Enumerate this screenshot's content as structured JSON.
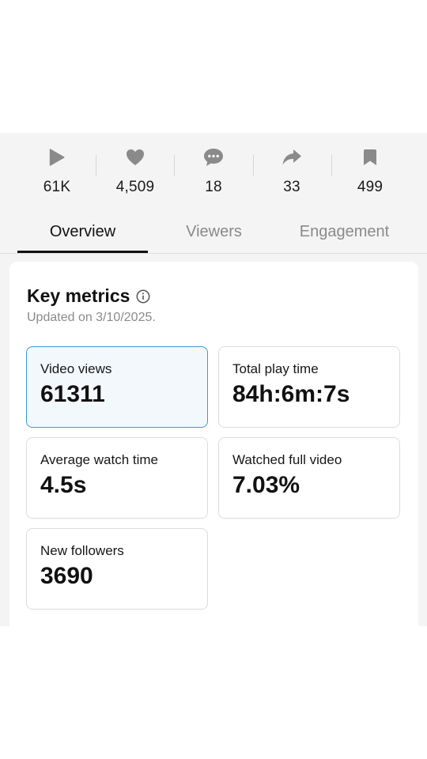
{
  "stats": [
    {
      "icon": "play-icon",
      "value": "61K"
    },
    {
      "icon": "heart-icon",
      "value": "4,509"
    },
    {
      "icon": "comment-icon",
      "value": "18"
    },
    {
      "icon": "share-icon",
      "value": "33"
    },
    {
      "icon": "bookmark-icon",
      "value": "499"
    }
  ],
  "tabs": [
    {
      "label": "Overview",
      "active": true
    },
    {
      "label": "Viewers",
      "active": false
    },
    {
      "label": "Engagement",
      "active": false
    }
  ],
  "key_metrics": {
    "title": "Key metrics",
    "updated": "Updated on 3/10/2025.",
    "items": [
      {
        "label": "Video views",
        "value": "61311",
        "selected": true
      },
      {
        "label": "Total play time",
        "value": "84h:6m:7s",
        "selected": false
      },
      {
        "label": "Average watch time",
        "value": "4.5s",
        "selected": false
      },
      {
        "label": "Watched full video",
        "value": "7.03%",
        "selected": false
      },
      {
        "label": "New followers",
        "value": "3690",
        "selected": false
      }
    ]
  },
  "colors": {
    "icon_gray": "#8a8a8a",
    "selected_border": "#3a9ad9",
    "selected_bg": "#f3f8fd"
  }
}
